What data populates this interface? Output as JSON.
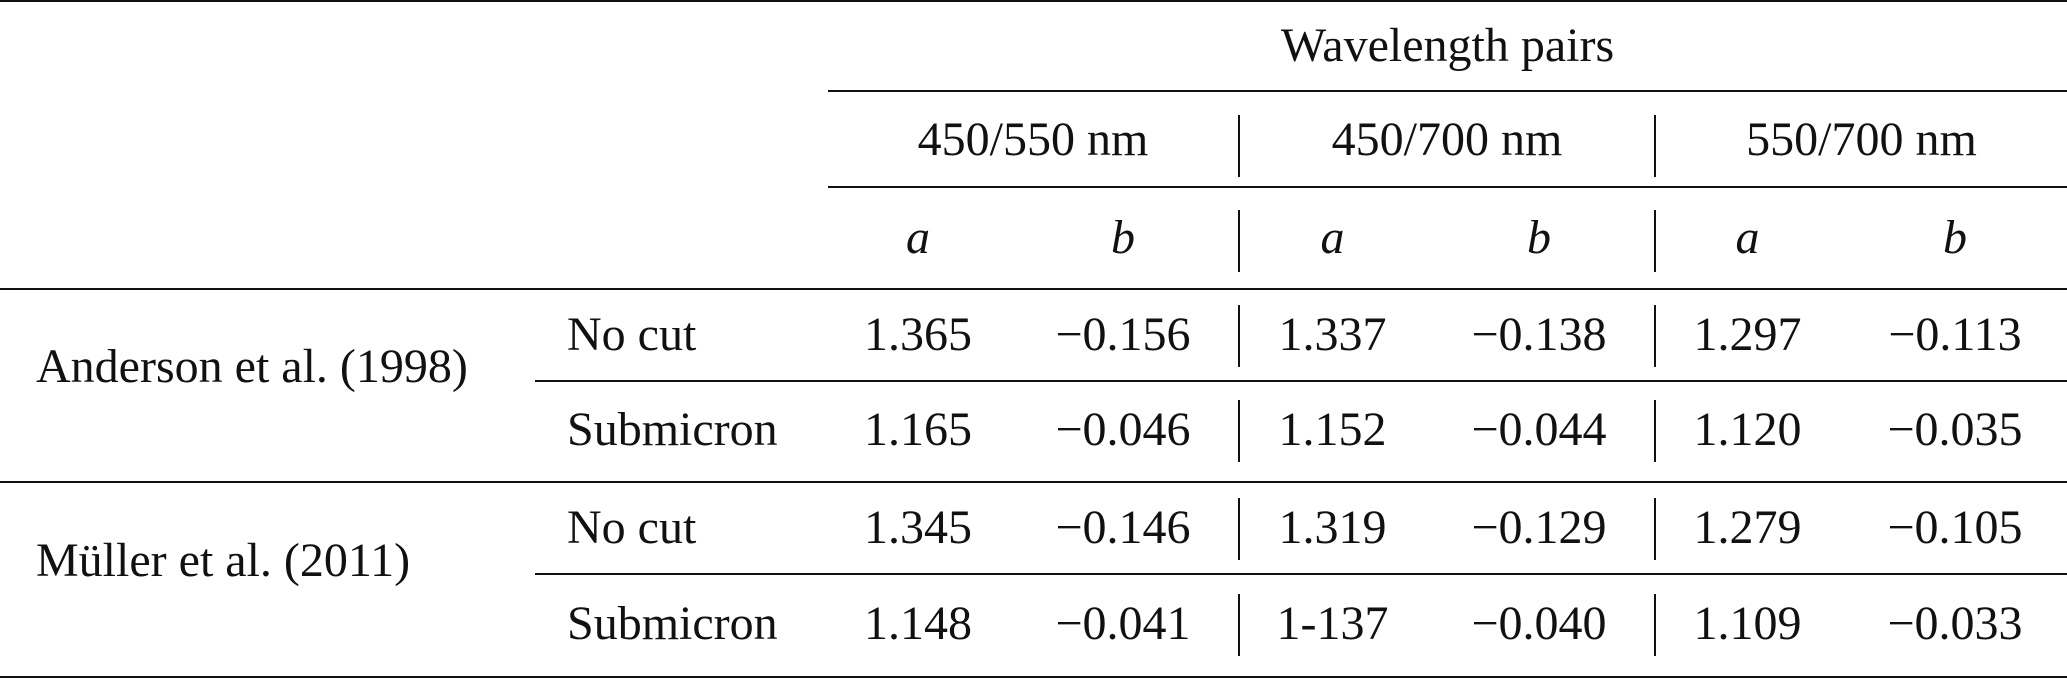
{
  "table": {
    "group_header": "Wavelength pairs",
    "pairs": [
      "450/550 nm",
      "450/700 nm",
      "550/700 nm"
    ],
    "coeffs": [
      "a",
      "b",
      "a",
      "b",
      "a",
      "b"
    ],
    "groups": [
      {
        "source": "Anderson et al. (1998)",
        "rows": [
          {
            "label": "No cut",
            "values": [
              "1.365",
              "−0.156",
              "1.337",
              "−0.138",
              "1.297",
              "−0.113"
            ]
          },
          {
            "label": "Submicron",
            "values": [
              "1.165",
              "−0.046",
              "1.152",
              "−0.044",
              "1.120",
              "−0.035"
            ]
          }
        ]
      },
      {
        "source": "Müller et al. (2011)",
        "rows": [
          {
            "label": "No cut",
            "values": [
              "1.345",
              "−0.146",
              "1.319",
              "−0.129",
              "1.279",
              "−0.105"
            ]
          },
          {
            "label": "Submicron",
            "values": [
              "1.148",
              "−0.041",
              "1-137",
              "−0.040",
              "1.109",
              "−0.033"
            ]
          }
        ]
      }
    ]
  }
}
